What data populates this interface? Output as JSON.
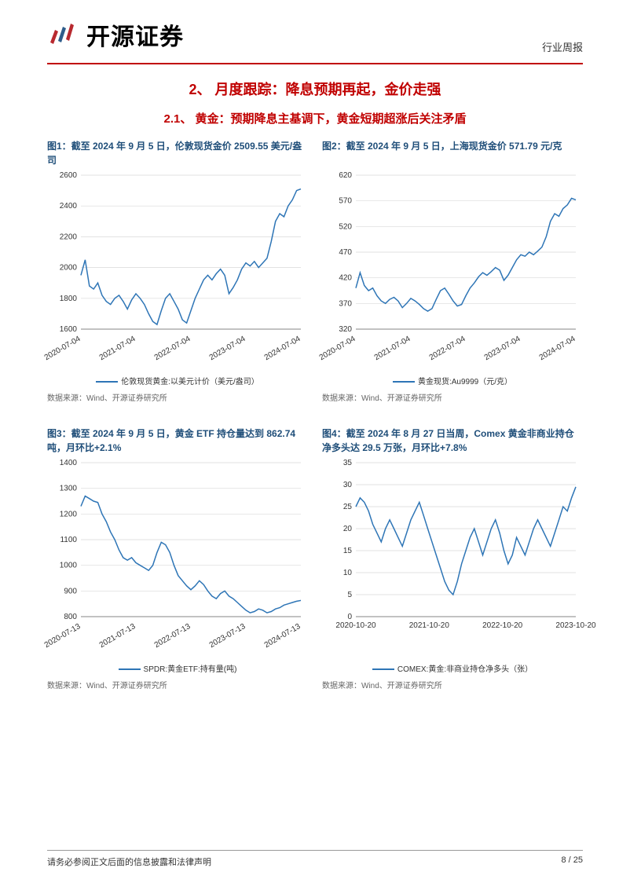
{
  "header": {
    "company_name": "开源证券",
    "doc_type": "行业周报"
  },
  "section": {
    "title": "2、 月度跟踪：降息预期再起，金价走强",
    "subtitle": "2.1、 黄金：预期降息主基调下，黄金短期超涨后关注矛盾"
  },
  "charts": [
    {
      "caption": "图1：截至 2024 年 9 月 5 日，伦敦现货金价 2509.55 美元/盎司",
      "legend": "伦敦现货黄金:以美元计价（美元/盎司）",
      "source": "数据来源：Wind、开源证券研究所",
      "type": "line",
      "line_color": "#2e75b6",
      "line_width": 1.5,
      "background_color": "#ffffff",
      "grid_color": "#d9d9d9",
      "ylim": [
        1600,
        2600
      ],
      "ytick_step": 200,
      "x_labels": [
        "2020-07-04",
        "2021-07-04",
        "2022-07-04",
        "2023-07-04",
        "2024-07-04"
      ],
      "x_label_rotation": -30,
      "axis_fontsize": 10,
      "values": [
        1950,
        2050,
        1880,
        1860,
        1900,
        1820,
        1780,
        1760,
        1800,
        1820,
        1780,
        1730,
        1790,
        1830,
        1800,
        1760,
        1700,
        1650,
        1630,
        1720,
        1800,
        1830,
        1780,
        1730,
        1660,
        1640,
        1720,
        1800,
        1860,
        1920,
        1950,
        1920,
        1960,
        1990,
        1950,
        1830,
        1870,
        1920,
        1990,
        2030,
        2010,
        2040,
        2000,
        2030,
        2060,
        2170,
        2300,
        2350,
        2330,
        2400,
        2440,
        2500,
        2510
      ]
    },
    {
      "caption": "图2：截至 2024 年 9 月 5 日，上海现货金价 571.79 元/克",
      "legend": "黄金现货:Au9999（元/克）",
      "source": "数据来源：Wind、开源证券研究所",
      "type": "line",
      "line_color": "#2e75b6",
      "line_width": 1.5,
      "background_color": "#ffffff",
      "grid_color": "#d9d9d9",
      "ylim": [
        320,
        620
      ],
      "ytick_step": 50,
      "x_labels": [
        "2020-07-04",
        "2021-07-04",
        "2022-07-04",
        "2023-07-04",
        "2024-07-04"
      ],
      "x_label_rotation": -30,
      "axis_fontsize": 10,
      "values": [
        400,
        430,
        405,
        395,
        400,
        385,
        375,
        370,
        378,
        382,
        375,
        362,
        370,
        380,
        375,
        368,
        360,
        355,
        360,
        378,
        395,
        400,
        388,
        375,
        365,
        368,
        385,
        400,
        410,
        422,
        430,
        425,
        432,
        440,
        435,
        415,
        425,
        440,
        455,
        465,
        462,
        470,
        465,
        472,
        480,
        500,
        530,
        545,
        540,
        555,
        562,
        575,
        572
      ]
    },
    {
      "caption": "图3：截至 2024 年 9 月 5 日，黄金 ETF 持仓量达到 862.74 吨，月环比+2.1%",
      "legend": "SPDR:黄金ETF:持有量(吨)",
      "source": "数据来源：Wind、开源证券研究所",
      "type": "line",
      "line_color": "#2e75b6",
      "line_width": 1.5,
      "background_color": "#ffffff",
      "grid_color": "#d9d9d9",
      "ylim": [
        800,
        1400
      ],
      "ytick_step": 100,
      "x_labels": [
        "2020-07-13",
        "2021-07-13",
        "2022-07-13",
        "2023-07-13",
        "2024-07-13"
      ],
      "x_label_rotation": -30,
      "axis_fontsize": 10,
      "values": [
        1230,
        1270,
        1260,
        1250,
        1245,
        1200,
        1170,
        1130,
        1100,
        1060,
        1030,
        1020,
        1030,
        1010,
        1000,
        990,
        980,
        1000,
        1050,
        1090,
        1080,
        1050,
        1000,
        960,
        940,
        920,
        905,
        920,
        940,
        925,
        900,
        880,
        870,
        890,
        900,
        880,
        870,
        855,
        840,
        825,
        815,
        820,
        830,
        825,
        815,
        820,
        830,
        835,
        845,
        850,
        855,
        860,
        863
      ]
    },
    {
      "caption": "图4：截至 2024 年 8 月 27 日当周，Comex 黄金非商业持仓净多头达 29.5 万张，月环比+7.8%",
      "legend": "COMEX:黄金:非商业持仓净多头（张）",
      "source": "数据来源：Wind、开源证券研究所",
      "type": "line",
      "line_color": "#2e75b6",
      "line_width": 1.5,
      "background_color": "#ffffff",
      "grid_color": "#d9d9d9",
      "ylim": [
        0,
        35
      ],
      "ytick_step": 5,
      "x_labels": [
        "2020-10-20",
        "2021-10-20",
        "2022-10-20",
        "2023-10-20"
      ],
      "x_label_rotation": 0,
      "axis_fontsize": 10,
      "values": [
        25,
        27,
        26,
        24,
        21,
        19,
        17,
        20,
        22,
        20,
        18,
        16,
        19,
        22,
        24,
        26,
        23,
        20,
        17,
        14,
        11,
        8,
        6,
        5,
        8,
        12,
        15,
        18,
        20,
        17,
        14,
        17,
        20,
        22,
        19,
        15,
        12,
        14,
        18,
        16,
        14,
        17,
        20,
        22,
        20,
        18,
        16,
        19,
        22,
        25,
        24,
        27,
        29.5
      ]
    }
  ],
  "footer": {
    "disclaimer": "请务必参阅正文后面的信息披露和法律声明",
    "page": "8 / 25"
  },
  "logo_colors": {
    "red": "#b8292f",
    "blue": "#2e5c8a"
  }
}
